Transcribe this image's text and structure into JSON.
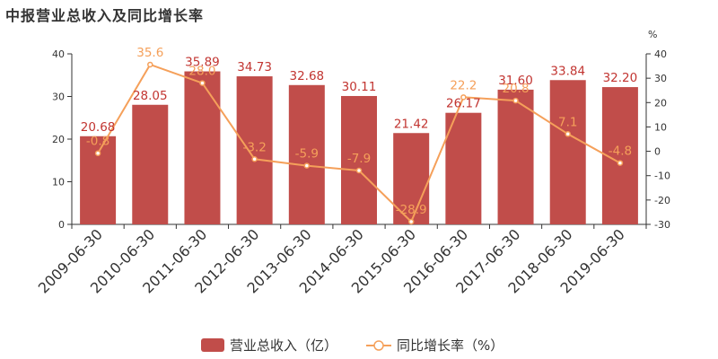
{
  "chart_data": {
    "type": "bar",
    "title": "中报营业总收入及同比增长率",
    "categories": [
      "2009-06-30",
      "2010-06-30",
      "2011-06-30",
      "2012-06-30",
      "2013-06-30",
      "2014-06-30",
      "2015-06-30",
      "2016-06-30",
      "2017-06-30",
      "2018-06-30",
      "2019-06-30"
    ],
    "series": [
      {
        "name": "营业总收入（亿）",
        "type": "bar",
        "axis": "left",
        "values": [
          20.68,
          28.05,
          35.89,
          34.73,
          32.68,
          30.11,
          21.42,
          26.17,
          31.6,
          33.84,
          32.2
        ],
        "labels": [
          "20.68",
          "28.05",
          "35.89",
          "34.73",
          "32.68",
          "30.11",
          "21.42",
          "26.17",
          "31.60",
          "33.84",
          "32.20"
        ]
      },
      {
        "name": "同比增长率（%）",
        "type": "line",
        "axis": "right",
        "values": [
          -0.8,
          35.6,
          28.0,
          -3.2,
          -5.9,
          -7.9,
          -28.9,
          22.2,
          20.8,
          7.1,
          -4.8
        ],
        "labels": [
          "-0.8",
          "35.6",
          "28.0",
          "-3.2",
          "-5.9",
          "-7.9",
          "-28.9",
          "22.2",
          "20.8",
          "7.1",
          "-4.8"
        ]
      }
    ],
    "y_left": {
      "min": 0,
      "max": 40,
      "ticks": [
        0,
        10,
        20,
        30,
        40
      ]
    },
    "y_right": {
      "min": -30,
      "max": 40,
      "unit": "%",
      "ticks": [
        -30,
        -20,
        -10,
        0,
        10,
        20,
        30,
        40
      ]
    },
    "legend_position": "bottom-center",
    "grid": false,
    "colors": {
      "bar": "#c14d4a",
      "bar_label": "#c23531",
      "line": "#f5a05a",
      "axis": "#333333"
    }
  }
}
